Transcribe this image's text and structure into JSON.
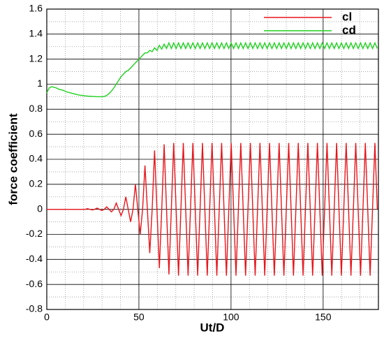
{
  "chart_data": {
    "type": "line",
    "xlabel": "Ut/D",
    "ylabel": "force coefficient",
    "x": [
      0,
      1.3,
      2.6,
      3.9,
      5.2,
      6.5,
      7.8,
      9.1,
      10.4,
      11.7,
      13,
      14.3,
      15.6,
      16.9,
      18.2,
      19.5,
      20.8,
      22.1,
      23.4,
      24.7,
      26,
      27.3,
      28.6,
      29.9,
      31.2,
      32.5,
      33.8,
      35.1,
      36.4,
      37.7,
      39,
      40.3,
      41.6,
      42.9,
      44.2,
      45.5,
      46.8,
      48.1,
      49.4,
      50.7,
      52,
      53.3,
      54.6,
      55.9,
      57.2,
      58.5,
      59.8,
      61.1,
      62.4,
      63.7,
      65,
      66.3,
      67.6,
      68.9,
      70.2,
      71.5,
      72.8,
      74.1,
      75.4,
      76.7,
      78,
      79.3,
      80.6,
      81.9,
      83.2,
      84.5,
      85.8,
      87.1,
      88.4,
      89.7,
      91,
      92.3,
      93.6,
      94.9,
      96.2,
      97.5,
      98.8,
      100.1,
      101.4,
      102.7,
      104,
      105.3,
      106.6,
      107.9,
      109.2,
      110.5,
      111.8,
      113.1,
      114.4,
      115.7,
      117,
      118.3,
      119.6,
      120.9,
      122.2,
      123.5,
      124.8,
      126.1,
      127.4,
      128.7,
      130,
      131.3,
      132.6,
      133.9,
      135.2,
      136.5,
      137.8,
      139.1,
      140.4,
      141.7,
      143,
      144.3,
      145.6,
      146.9,
      148.2,
      149.5,
      150.8,
      152.1,
      153.4,
      154.7,
      156,
      157.3,
      158.6,
      159.9,
      161.2,
      162.5,
      163.8,
      165.1,
      166.4,
      167.7,
      169,
      170.3,
      171.6,
      172.9,
      174.2,
      175.5,
      176.8,
      178.1,
      179.4
    ],
    "series": [
      {
        "name": "cl",
        "color": "#e8151b",
        "values": [
          0,
          0,
          0,
          0,
          0,
          0,
          0,
          0,
          0,
          0,
          0,
          0,
          0,
          0,
          0,
          0,
          0,
          0.005,
          0,
          -0.005,
          0,
          0.01,
          0,
          -0.01,
          0,
          0.02,
          0,
          -0.02,
          0,
          0.05,
          0,
          -0.05,
          0,
          0.1,
          0,
          -0.1,
          0,
          0.2,
          0,
          -0.2,
          0,
          0.35,
          0,
          -0.35,
          0,
          0.47,
          0,
          -0.47,
          0,
          0.52,
          0,
          -0.52,
          0,
          0.53,
          0,
          -0.53,
          0,
          0.53,
          0,
          -0.53,
          0,
          0.53,
          0,
          -0.53,
          0,
          0.53,
          0,
          -0.53,
          0,
          0.53,
          0,
          -0.53,
          0,
          0.53,
          0,
          -0.53,
          0,
          0.53,
          0,
          -0.53,
          0,
          0.53,
          0,
          -0.53,
          0,
          0.53,
          0,
          -0.53,
          0,
          0.53,
          0,
          -0.53,
          0,
          0.53,
          0,
          -0.53,
          0,
          0.53,
          0,
          -0.53,
          0,
          0.53,
          0,
          -0.53,
          0,
          0.53,
          0,
          -0.53,
          0,
          0.53,
          0,
          -0.53,
          0,
          0.53,
          0,
          -0.53,
          0,
          0.53,
          0,
          -0.53,
          0,
          0.53,
          0,
          -0.53,
          0,
          0.53,
          0,
          -0.53,
          0,
          0.53,
          0,
          -0.53,
          0,
          0.53,
          0,
          -0.53,
          0,
          0.53,
          0
        ]
      },
      {
        "name": "cd",
        "color": "#1fd21f",
        "values": [
          0.93,
          0.97,
          0.98,
          0.975,
          0.97,
          0.96,
          0.955,
          0.95,
          0.94,
          0.935,
          0.93,
          0.925,
          0.92,
          0.915,
          0.912,
          0.91,
          0.907,
          0.905,
          0.903,
          0.902,
          0.901,
          0.9,
          0.9,
          0.9,
          0.902,
          0.91,
          0.925,
          0.945,
          0.97,
          1.0,
          1.03,
          1.06,
          1.08,
          1.1,
          1.11,
          1.13,
          1.15,
          1.17,
          1.19,
          1.21,
          1.23,
          1.25,
          1.25,
          1.27,
          1.26,
          1.29,
          1.27,
          1.31,
          1.28,
          1.32,
          1.285,
          1.33,
          1.285,
          1.33,
          1.285,
          1.33,
          1.285,
          1.33,
          1.285,
          1.33,
          1.285,
          1.33,
          1.285,
          1.33,
          1.285,
          1.33,
          1.285,
          1.33,
          1.285,
          1.33,
          1.285,
          1.33,
          1.285,
          1.33,
          1.285,
          1.33,
          1.285,
          1.33,
          1.285,
          1.33,
          1.285,
          1.33,
          1.285,
          1.33,
          1.285,
          1.33,
          1.285,
          1.33,
          1.285,
          1.33,
          1.285,
          1.33,
          1.285,
          1.33,
          1.285,
          1.33,
          1.285,
          1.33,
          1.285,
          1.33,
          1.285,
          1.33,
          1.285,
          1.33,
          1.285,
          1.33,
          1.285,
          1.33,
          1.285,
          1.33,
          1.285,
          1.33,
          1.285,
          1.33,
          1.285,
          1.33,
          1.285,
          1.33,
          1.285,
          1.33,
          1.285,
          1.33,
          1.285,
          1.33,
          1.285,
          1.33,
          1.285,
          1.33,
          1.285,
          1.33,
          1.285,
          1.33,
          1.285,
          1.33,
          1.285,
          1.33,
          1.285,
          1.33,
          1.285
        ]
      }
    ],
    "xlim": [
      0,
      180
    ],
    "xticks": [
      0,
      50,
      100,
      150
    ],
    "ylim": [
      -0.8,
      1.6
    ],
    "yticks": [
      -0.8,
      -0.6,
      -0.4,
      -0.2,
      0,
      0.2,
      0.4,
      0.6,
      0.8,
      1,
      1.2,
      1.4,
      1.6
    ],
    "grid": true,
    "legend": "upper right"
  }
}
